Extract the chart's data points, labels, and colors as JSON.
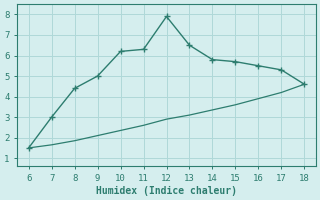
{
  "xlabel": "Humidex (Indice chaleur)",
  "line1_x": [
    6,
    7,
    8,
    9,
    10,
    11,
    12,
    13,
    14,
    15,
    16,
    17,
    18
  ],
  "line1_y": [
    1.5,
    3.0,
    4.4,
    5.0,
    6.2,
    6.3,
    7.9,
    6.5,
    5.8,
    5.7,
    5.5,
    5.3,
    4.6
  ],
  "line2_x": [
    6,
    7,
    8,
    9,
    10,
    11,
    12,
    13,
    14,
    15,
    16,
    17,
    18
  ],
  "line2_y": [
    1.5,
    1.65,
    1.85,
    2.1,
    2.35,
    2.6,
    2.9,
    3.1,
    3.35,
    3.6,
    3.9,
    4.2,
    4.6
  ],
  "line_color": "#2d7d6f",
  "bg_color": "#d5eeee",
  "grid_color": "#afd8d8",
  "xlim": [
    5.5,
    18.5
  ],
  "ylim": [
    0.6,
    8.5
  ],
  "xticks": [
    6,
    7,
    8,
    9,
    10,
    11,
    12,
    13,
    14,
    15,
    16,
    17,
    18
  ],
  "yticks": [
    1,
    2,
    3,
    4,
    5,
    6,
    7,
    8
  ]
}
